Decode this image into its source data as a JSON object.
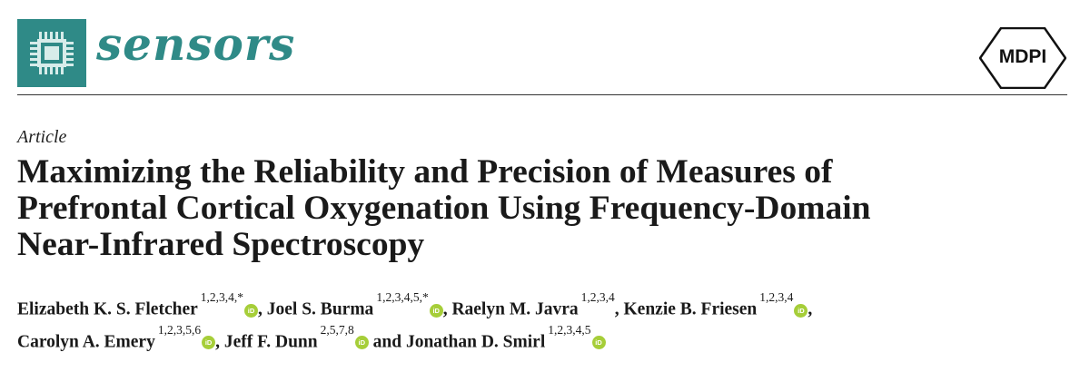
{
  "header": {
    "journal_name": "sensors",
    "publisher": "MDPI",
    "colors": {
      "journal_teal": "#2f8a87",
      "orcid_green": "#a6ce39"
    },
    "icons": [
      "chip-logo-icon",
      "publisher-hexagon-icon",
      "orcid-icon"
    ]
  },
  "article": {
    "type": "Article",
    "title_lines": [
      "Maximizing the Reliability and Precision of Measures of",
      "Prefrontal Cortical Oxygenation Using Frequency-Domain",
      "Near-Infrared Spectroscopy"
    ]
  },
  "authors": [
    {
      "name": "Elizabeth K. S. Fletcher",
      "affiliations": "1,2,3,4,*",
      "orcid": true,
      "sep": ","
    },
    {
      "name": "Joel S. Burma",
      "affiliations": "1,2,3,4,5,*",
      "orcid": true,
      "sep": ","
    },
    {
      "name": "Raelyn M. Javra",
      "affiliations": "1,2,3,4",
      "orcid": false,
      "sep": ","
    },
    {
      "name": "Kenzie B. Friesen",
      "affiliations": "1,2,3,4",
      "orcid": true,
      "sep": ","
    },
    {
      "name": "Carolyn A. Emery",
      "affiliations": "1,2,3,5,6",
      "orcid": true,
      "sep": ","
    },
    {
      "name": "Jeff F. Dunn",
      "affiliations": "2,5,7,8",
      "orcid": true,
      "sep": ""
    },
    {
      "name": "Jonathan D. Smirl",
      "affiliations": "1,2,3,4,5",
      "orcid": true,
      "sep": ""
    }
  ],
  "author_connector": "and",
  "orcid_label": "iD"
}
